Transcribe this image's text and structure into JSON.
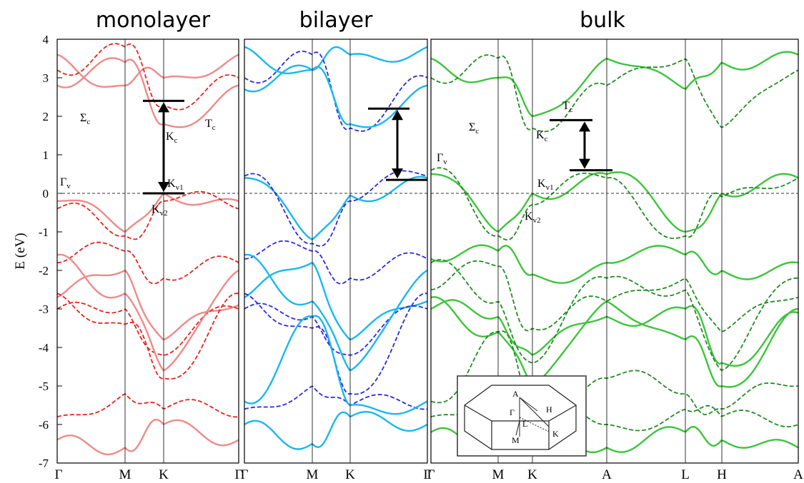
{
  "figure": {
    "ylabel": "E (eV)",
    "panels": [
      {
        "id": "mono",
        "title": "monolayer",
        "color_solid": "#ee8a8a",
        "color_dashed": "#e8221e",
        "kpoints": [
          "Γ",
          "M",
          "K",
          "Γ"
        ],
        "annotations": [
          {
            "main": "Σ",
            "sub": "c"
          },
          {
            "main": "T",
            "sub": "c"
          },
          {
            "main": "K",
            "sub": "c"
          },
          {
            "main": "Γ",
            "sub": "v"
          },
          {
            "main": "K",
            "sub": "v1"
          },
          {
            "main": "K",
            "sub": "v2"
          }
        ]
      },
      {
        "id": "bi",
        "title": "bilayer",
        "color_solid": "#19b8ee",
        "color_dashed": "#2a2ae0",
        "kpoints": [
          "Γ",
          "M",
          "K",
          "Γ"
        ],
        "annotations": []
      },
      {
        "id": "bulk",
        "title": "bulk",
        "color_solid": "#3dc43d",
        "color_dashed": "#1f8c1f",
        "kpoints": [
          "Γ",
          "M",
          "K",
          "A",
          "L",
          "H",
          "A"
        ],
        "annotations": [
          {
            "main": "Γ",
            "sub": "v"
          },
          {
            "main": "Σ",
            "sub": "c"
          },
          {
            "main": "K",
            "sub": "c"
          },
          {
            "main": "T",
            "sub": "c"
          },
          {
            "main": "K",
            "sub": "v1"
          },
          {
            "main": "K",
            "sub": "v2"
          }
        ]
      }
    ],
    "inset": {
      "labels": [
        "A",
        "H",
        "Γ",
        "L",
        "K",
        "M"
      ]
    }
  },
  "chart_data": [
    {
      "type": "line",
      "title": "monolayer",
      "ylabel": "E (eV)",
      "ylim": [
        -7,
        4
      ],
      "x": [
        "Γ",
        "M",
        "K",
        "Γ"
      ],
      "yticks": [
        -7,
        -6,
        -5,
        -4,
        -3,
        -2,
        -1,
        0,
        1,
        2,
        3,
        4
      ],
      "gap_arrow": {
        "from_eV": 0.0,
        "to_eV": 2.4
      },
      "series": [
        {
          "style": "solid",
          "values": [
            -0.2,
            -1.0,
            -0.0,
            -0.2
          ]
        },
        {
          "style": "dashed",
          "values": [
            -0.4,
            -1.1,
            -0.2,
            -0.4
          ]
        },
        {
          "style": "solid",
          "values": [
            -6.4,
            -6.6,
            -6.0,
            -6.4
          ]
        },
        {
          "style": "dashed",
          "values": [
            -5.8,
            -5.2,
            -5.6,
            -5.8
          ]
        }
      ]
    },
    {
      "type": "line",
      "title": "bilayer",
      "ylim": [
        -7,
        4
      ],
      "x": [
        "Γ",
        "M",
        "K",
        "Γ"
      ],
      "gap_arrow": {
        "from_eV": 0.35,
        "to_eV": 2.2
      },
      "series": [
        {
          "style": "solid",
          "values": [
            0.4,
            -1.2,
            -0.05,
            0.4
          ]
        },
        {
          "style": "dashed",
          "values": [
            0.45,
            -1.3,
            -0.2,
            0.45
          ]
        },
        {
          "style": "solid",
          "values": [
            -6.0,
            -6.5,
            -5.8,
            -6.0
          ]
        },
        {
          "style": "dashed",
          "values": [
            -5.6,
            -5.0,
            -5.5,
            -5.6
          ]
        }
      ]
    },
    {
      "type": "line",
      "title": "bulk",
      "ylim": [
        -7,
        4
      ],
      "x": [
        "Γ",
        "M",
        "K",
        "A",
        "L",
        "H",
        "A"
      ],
      "gap_arrow": {
        "from_eV": 0.6,
        "to_eV": 1.9
      },
      "series": [
        {
          "style": "solid",
          "values": [
            0.5,
            -1.0,
            0.0,
            0.5,
            -1.0,
            0.0,
            0.4
          ]
        },
        {
          "style": "dashed",
          "values": [
            0.6,
            -1.1,
            -0.3,
            0.4,
            -1.1,
            -0.1,
            0.4
          ]
        },
        {
          "style": "solid",
          "values": [
            -6.2,
            -6.5,
            -6.0,
            -6.6,
            -6.2,
            -6.4,
            -6.6
          ]
        },
        {
          "style": "dashed",
          "values": [
            -5.8,
            -5.2,
            -5.5,
            -6.0,
            -5.6,
            -5.8,
            -6.0
          ]
        }
      ]
    }
  ]
}
